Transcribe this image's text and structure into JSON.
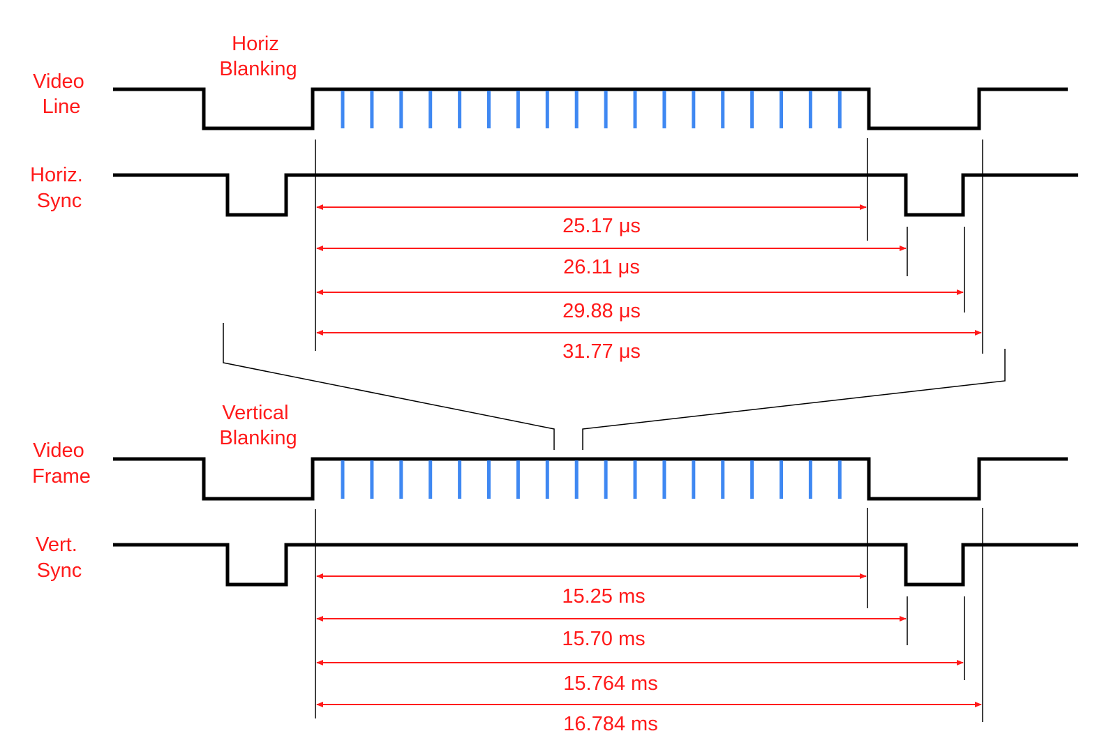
{
  "colors": {
    "signal": "#000000",
    "video_ticks": "#3f88f2",
    "measurement": "#ff1a1a",
    "label_text": "#ff1a1a",
    "connector": "#000000"
  },
  "labels": {
    "horiz_blanking": [
      "Horiz",
      "Blanking"
    ],
    "video_line": [
      "Video",
      "Line"
    ],
    "horiz_sync": [
      "Horiz.",
      "Sync"
    ],
    "vertical_blanking": [
      "Vertical",
      "Blanking"
    ],
    "video_frame": [
      "Video",
      "Frame"
    ],
    "vert_sync": [
      "Vert.",
      "Sync"
    ]
  },
  "horizontal_timing": [
    {
      "label": "25.17 μs"
    },
    {
      "label": "26.11 μs"
    },
    {
      "label": "29.88 μs"
    },
    {
      "label": "31.77 μs"
    }
  ],
  "vertical_timing": [
    {
      "label": "15.25 ms"
    },
    {
      "label": "15.70 ms"
    },
    {
      "label": "15.764 ms"
    },
    {
      "label": "16.784 ms"
    }
  ]
}
